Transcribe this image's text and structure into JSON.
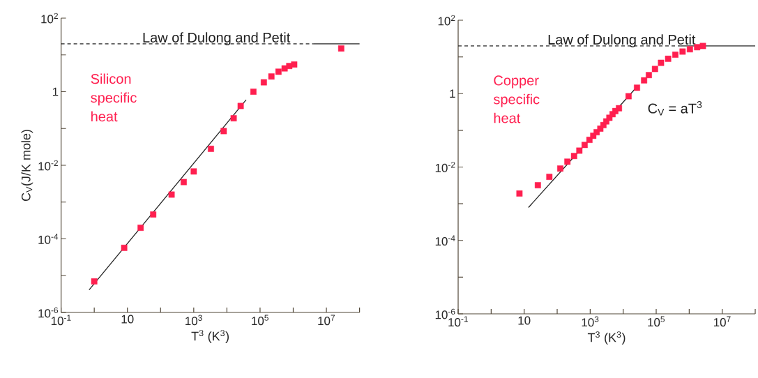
{
  "chart_data": [
    {
      "type": "scatter",
      "xlabel": "T$^{3}$ (K$^{3}$)",
      "ylabel": "C$_{V}$(J/K mole)",
      "log": "xy",
      "xlim": [
        0.1,
        100000000
      ],
      "ylim": [
        1e-06,
        100
      ],
      "xticks": [
        {
          "value": 0.1,
          "label": "10$^{-1}$"
        },
        {
          "value": 1,
          "label": null
        },
        10,
        {
          "value": 100,
          "label": null
        },
        {
          "value": 1000,
          "label": "10$^{3}$"
        },
        {
          "value": 10000,
          "label": null
        },
        {
          "value": 100000,
          "label": "10$^{5}$"
        },
        {
          "value": 1000000,
          "label": null
        },
        {
          "value": 10000000,
          "label": "10$^{7}$"
        },
        {
          "value": 100000000,
          "label": null
        }
      ],
      "yticks": [
        {
          "value": 1e-06,
          "label": "10$^{-6}$"
        },
        {
          "value": 1e-05,
          "label": null
        },
        {
          "value": 0.0001,
          "label": "10$^{-4}$"
        },
        {
          "value": 0.001,
          "label": null
        },
        {
          "value": 0.01,
          "label": "10$^{-2}$"
        },
        {
          "value": 0.1,
          "label": null
        },
        1,
        {
          "value": 10,
          "label": null
        },
        {
          "value": 100,
          "label": "10$^{2}$"
        }
      ],
      "series": [
        {
          "type": "scatter",
          "name": "Silicon specific heat",
          "marker": "square",
          "color": "#ff1f4f",
          "x": [
            1,
            8,
            25,
            60,
            215,
            500,
            1000,
            3300,
            8000,
            16000,
            26000,
            63000,
            130000,
            220000,
            360000,
            550000,
            760000,
            1070000,
            28000000
          ],
          "values": [
            7e-06,
            5.7e-05,
            0.0002,
            0.00046,
            0.0016,
            0.0035,
            0.0068,
            0.028,
            0.085,
            0.19,
            0.41,
            1.0,
            1.8,
            2.6,
            3.5,
            4.3,
            5.0,
            5.5,
            15
          ]
        },
        {
          "type": "line",
          "color": "#222222",
          "line_style": "solid",
          "x": [
            0.7,
            38000
          ],
          "values": [
            4.1e-06,
            0.6
          ]
        },
        {
          "type": "line",
          "color": "#222222",
          "line_style": "dashed",
          "x": [
            0.1,
            4000000
          ],
          "values": [
            20,
            20
          ]
        },
        {
          "type": "line",
          "color": "#222222",
          "line_style": "solid",
          "x": [
            4000000,
            100000000
          ],
          "values": [
            20,
            20
          ]
        }
      ],
      "annotations": [
        "Law of Dulong and Petit"
      ]
    },
    {
      "type": "scatter",
      "xlabel": "T$^{3}$ (K$^{3}$)",
      "log": "xy",
      "xlim": [
        0.1,
        100000000
      ],
      "ylim": [
        1e-06,
        100
      ],
      "xticks": [
        {
          "value": 0.1,
          "label": "10$^{-1}$"
        },
        {
          "value": 1,
          "label": null
        },
        10,
        {
          "value": 100,
          "label": null
        },
        {
          "value": 1000,
          "label": "10$^{3}$"
        },
        {
          "value": 10000,
          "label": null
        },
        {
          "value": 100000,
          "label": "10$^{5}$"
        },
        {
          "value": 1000000,
          "label": null
        },
        {
          "value": 10000000,
          "label": "10$^{7}$"
        },
        {
          "value": 100000000,
          "label": null
        }
      ],
      "yticks": [
        {
          "value": 1e-06,
          "label": "10$^{-6}$"
        },
        {
          "value": 1e-05,
          "label": null
        },
        {
          "value": 0.0001,
          "label": "10$^{-4}$"
        },
        {
          "value": 0.001,
          "label": null
        },
        {
          "value": 0.01,
          "label": "10$^{-2}$"
        },
        {
          "value": 0.1,
          "label": null
        },
        1,
        {
          "value": 10,
          "label": null
        },
        {
          "value": 100,
          "label": "10$^{2}$"
        }
      ],
      "series": [
        {
          "type": "scatter",
          "name": "Copper specific heat",
          "marker": "square",
          "color": "#ff1f4f",
          "x": [
            7.2,
            26,
            58,
            124,
            204,
            325,
            470,
            680,
            950,
            1240,
            1570,
            2030,
            2520,
            3070,
            3820,
            4770,
            5780,
            7450,
            14600,
            26200,
            43000,
            60000,
            92000,
            140000,
            230000,
            380000,
            630000,
            1050000,
            1740000,
            2600000
          ],
          "values": [
            0.0019,
            0.0032,
            0.0054,
            0.0091,
            0.014,
            0.02,
            0.028,
            0.04,
            0.055,
            0.071,
            0.089,
            0.111,
            0.139,
            0.175,
            0.22,
            0.275,
            0.335,
            0.4,
            0.85,
            1.45,
            2.3,
            3.2,
            4.7,
            6.9,
            8.9,
            11.5,
            14,
            16.2,
            18.4,
            19.9
          ]
        },
        {
          "type": "line",
          "color": "#222222",
          "line_style": "solid",
          "x": [
            13.5,
            28500
          ],
          "values": [
            0.00079,
            1.67
          ]
        },
        {
          "type": "line",
          "color": "#222222",
          "line_style": "dashed",
          "x": [
            0.1,
            540000
          ],
          "values": [
            20,
            20
          ]
        },
        {
          "type": "line",
          "color": "#222222",
          "line_style": "solid",
          "x": [
            540000,
            100000000
          ],
          "values": [
            20,
            20
          ]
        }
      ],
      "annotations": [
        "Law of Dulong and Petit",
        "C$_{V}$ = aT$^{3}$"
      ]
    }
  ]
}
